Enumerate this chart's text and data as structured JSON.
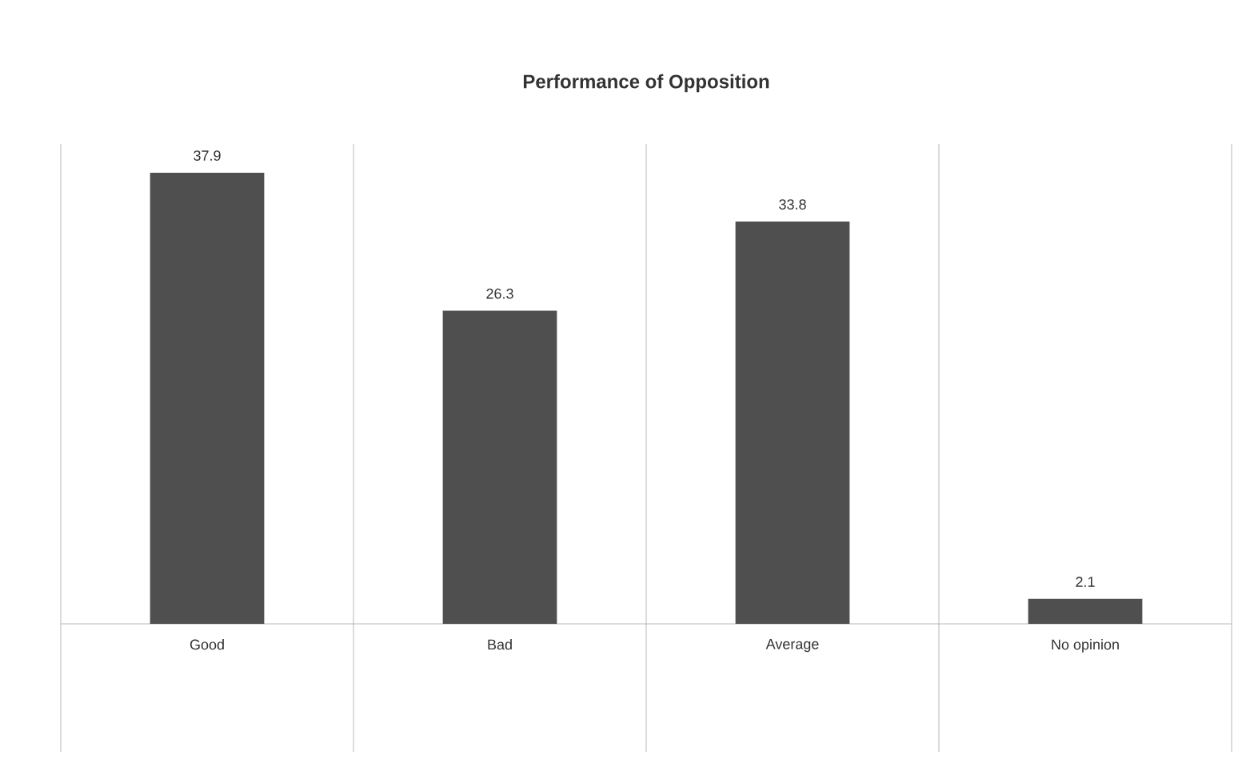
{
  "chart_data": {
    "type": "bar",
    "title": "Performance of Opposition",
    "categories": [
      "Good",
      "Bad",
      "Average",
      "No opinion"
    ],
    "values": [
      37.9,
      26.3,
      33.8,
      2.1
    ],
    "color": "#4f4f4f",
    "data_labels": true,
    "grid": "x"
  }
}
